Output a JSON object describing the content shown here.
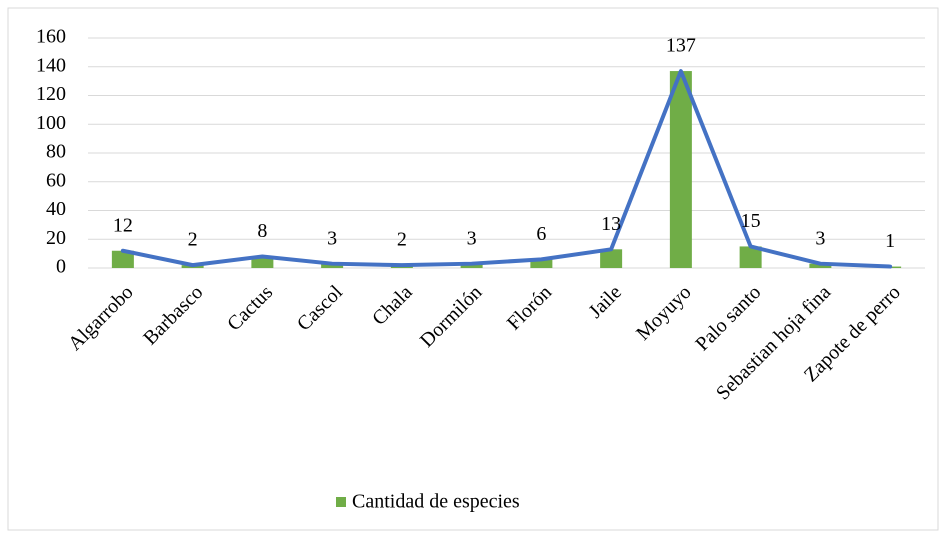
{
  "chart_data": {
    "type": "bar",
    "categories": [
      "Algarrobo",
      "Barbasco",
      "Cactus",
      "Cascol",
      "Chala",
      "Dormilón",
      "Florón",
      "Jaile",
      "Moyuyo",
      "Palo santo",
      "Sebastian hoja fina",
      "Zapote de perro"
    ],
    "series": [
      {
        "name": "Cantidad de especies",
        "color": "#70ad47",
        "values": [
          12,
          2,
          8,
          3,
          2,
          3,
          6,
          13,
          137,
          15,
          3,
          1
        ]
      }
    ],
    "overlay_line": true,
    "line_color": "#4472c4",
    "ylim": [
      0,
      160
    ],
    "yticks": [
      0,
      20,
      40,
      60,
      80,
      100,
      120,
      140,
      160
    ],
    "grid": true,
    "legend": "bottom"
  }
}
